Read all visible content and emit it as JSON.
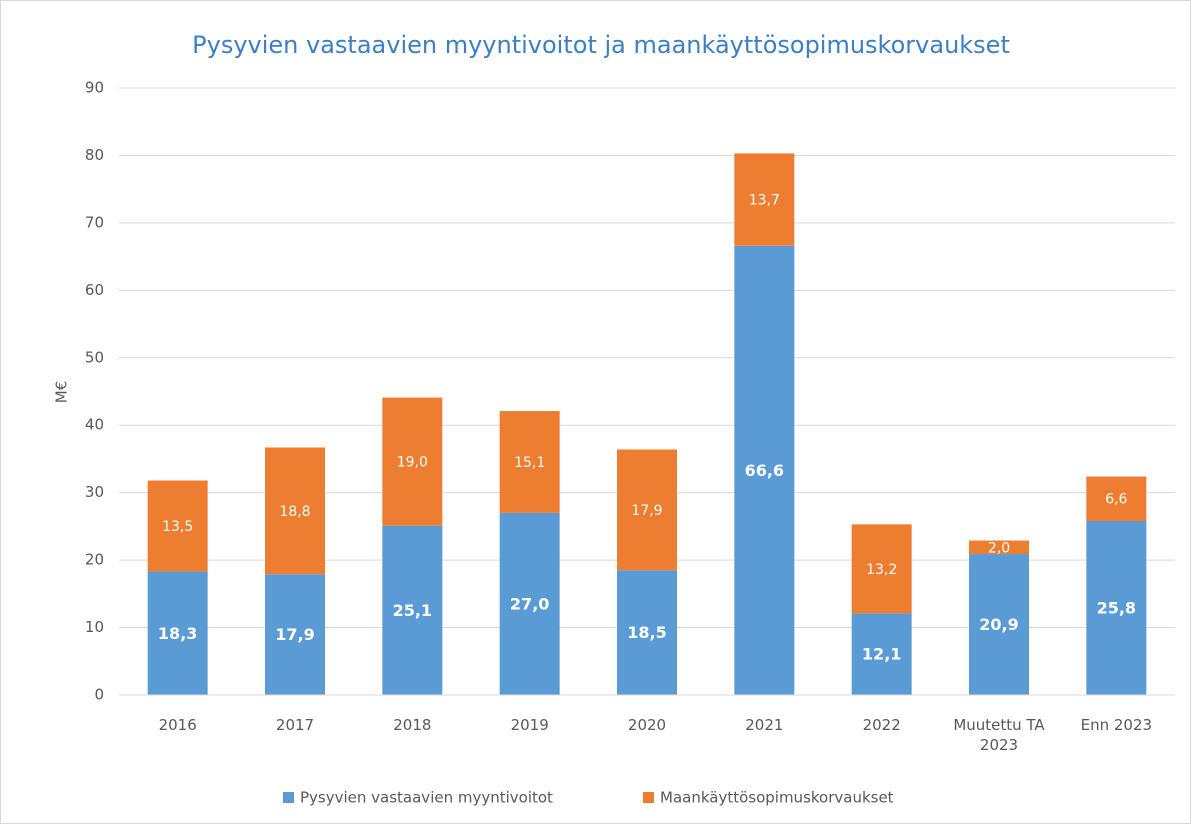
{
  "chart_data": {
    "type": "bar",
    "stacked": true,
    "title": "Pysyvien vastaavien myyntivoitot ja maankäyttösopimuskorvaukset",
    "y_label": "M€",
    "categories": [
      "2016",
      "2017",
      "2018",
      "2019",
      "2020",
      "2021",
      "2022",
      "Muutettu TA 2023",
      "Enn 2023"
    ],
    "series": [
      {
        "name": "Pysyvien vastaavien myyntivoitot",
        "color": "#5b9bd5",
        "values": [
          18.3,
          17.9,
          25.1,
          27.0,
          18.5,
          66.6,
          12.1,
          20.9,
          25.8
        ],
        "value_labels": [
          "18,3",
          "17,9",
          "25,1",
          "27,0",
          "18,5",
          "66,6",
          "12,1",
          "20,9",
          "25,8"
        ]
      },
      {
        "name": "Maankäyttösopimuskorvaukset",
        "color": "#ed7d31",
        "values": [
          13.5,
          18.8,
          19.0,
          15.1,
          17.9,
          13.7,
          13.2,
          2.0,
          6.6
        ],
        "value_labels": [
          "13,5",
          "18,8",
          "19,0",
          "15,1",
          "17,9",
          "13,7",
          "13,2",
          "2,0",
          "6,6"
        ]
      }
    ],
    "ylim": [
      0,
      90
    ],
    "yticks": [
      0,
      10,
      20,
      30,
      40,
      50,
      60,
      70,
      80,
      90
    ],
    "grid": true,
    "legend": "bottom"
  }
}
